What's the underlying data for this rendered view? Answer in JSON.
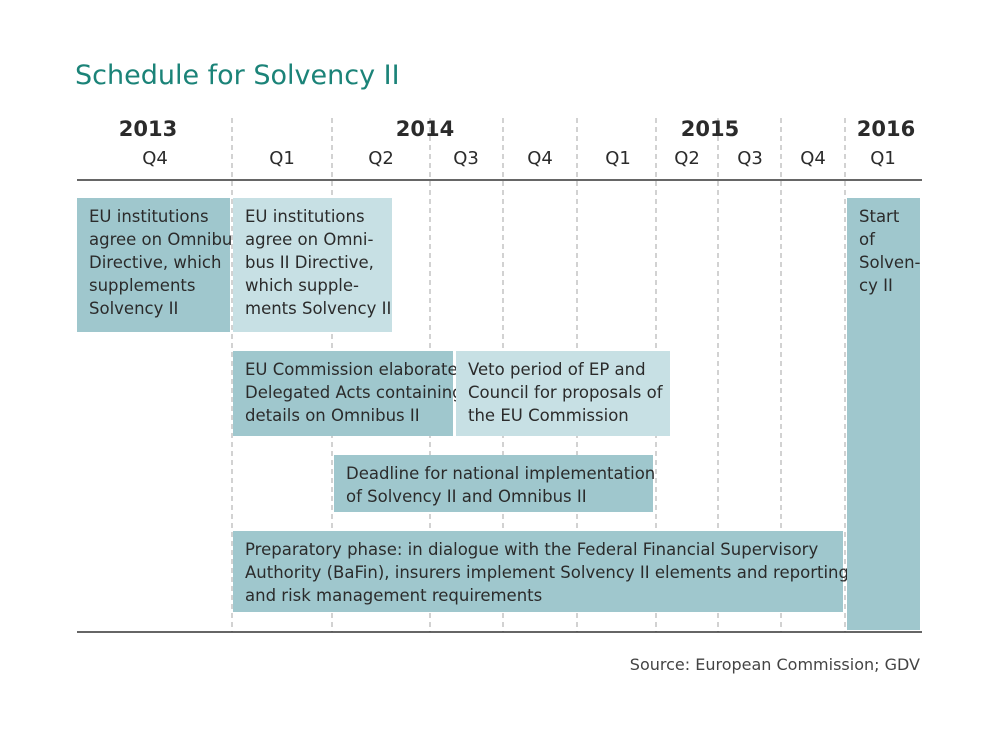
{
  "title": "Schedule for Solvency II",
  "years": [
    "2013",
    "2014",
    "2015",
    "2016"
  ],
  "quarters": [
    "Q4",
    "Q1",
    "Q2",
    "Q3",
    "Q4",
    "Q1",
    "Q2",
    "Q3",
    "Q4",
    "Q1"
  ],
  "boxes": [
    {
      "lines": [
        "EU institutions",
        "agree on Omnibus",
        "Directive, which",
        "supplements",
        "Solvency II"
      ]
    },
    {
      "lines": [
        "EU institutions",
        "agree on Omni-",
        "bus II Directive,",
        "which supple-",
        "ments Solvency II"
      ]
    },
    {
      "lines": [
        "EU Commission elaborates",
        "Delegated Acts containing",
        "details on Omnibus II"
      ]
    },
    {
      "lines": [
        "Veto period of EP and",
        "Council for proposals of",
        "the EU Commission"
      ]
    },
    {
      "lines": [
        "Deadline for national implementation",
        "of Solvency II and Omnibus II"
      ]
    },
    {
      "lines": [
        "Preparatory phase: in dialogue with the Federal Financial Supervisory",
        "Authority (BaFin), insurers implement Solvency II elements and reporting",
        "and risk management requirements"
      ]
    },
    {
      "lines": [
        "Start",
        "of",
        "Solven-",
        "cy II"
      ]
    }
  ],
  "source": "Source: European Commission; GDV"
}
